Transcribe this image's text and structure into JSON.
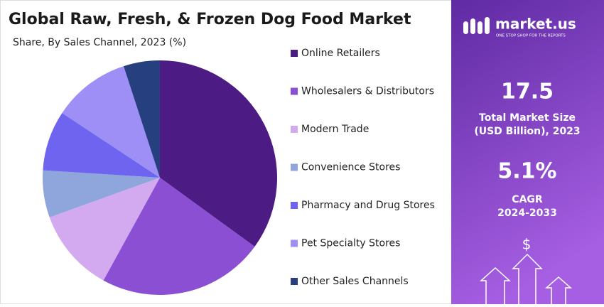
{
  "chart_data": {
    "type": "pie",
    "title": "Global Raw, Fresh, & Frozen Dog Food Market",
    "subtitle": "Share, By Sales Channel, 2023 (%)",
    "categories": [
      "Online Retailers",
      "Wholesalers & Distributors",
      "Modern Trade",
      "Convenience Stores",
      "Pharmacy and Drug Stores",
      "Pet Specialty Stores",
      "Other Sales Channels"
    ],
    "values": [
      35,
      23,
      11.5,
      6.5,
      8.3,
      10.7,
      5
    ],
    "colors": [
      "#4c1c84",
      "#8a4fd2",
      "#d3aaf0",
      "#8ea6dc",
      "#6e64ef",
      "#9d8ff6",
      "#263f7e"
    ]
  },
  "sidebar": {
    "brand": "market.us",
    "tagline": "ONE STOP SHOP FOR THE REPORTS",
    "market_size": "17.5",
    "market_size_label_1": "Total Market Size",
    "market_size_label_2": "(USD Billion), 2023",
    "cagr": "5.1%",
    "cagr_label_1": "CAGR",
    "cagr_label_2": "2024-2033",
    "icon_symbol": "$"
  }
}
